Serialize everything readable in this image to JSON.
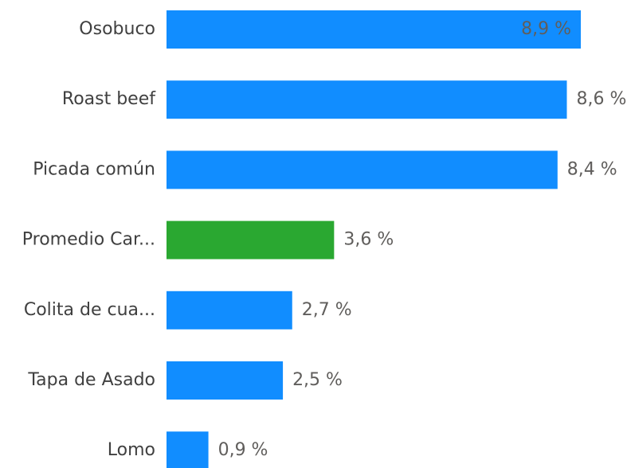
{
  "chart_data": {
    "type": "hbar",
    "categories": [
      "Osobuco",
      "Roast beef",
      "Picada común",
      "Promedio Car...",
      "Colita de cua...",
      "Tapa de Asado",
      "Lomo"
    ],
    "values": [
      8.9,
      8.6,
      8.4,
      3.6,
      2.7,
      2.5,
      0.9
    ],
    "value_labels": [
      "8,9 %",
      "8,6 %",
      "8,4 %",
      "3,6 %",
      "2,7 %",
      "2,5 %",
      "0,9 %"
    ],
    "colors": [
      "#118dff",
      "#118dff",
      "#118dff",
      "#2aa831",
      "#118dff",
      "#118dff",
      "#118dff"
    ]
  }
}
